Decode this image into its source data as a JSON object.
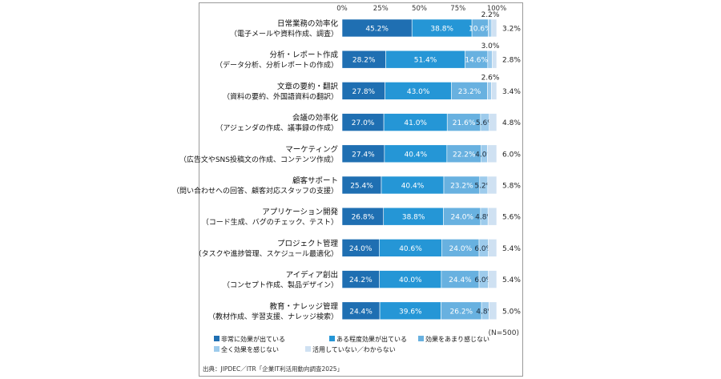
{
  "chart_data": {
    "type": "bar",
    "orientation": "horizontal",
    "stacked": true,
    "xlim": [
      0,
      100
    ],
    "ticks": [
      "0%",
      "25%",
      "50%",
      "75%",
      "100%"
    ],
    "grid": false,
    "legend_position": "bottom",
    "categories": [
      {
        "name": "日常業務の効率化",
        "sub": "（電子メールや資料作成、調査）"
      },
      {
        "name": "分析・レポート作成",
        "sub": "（データ分析、分析レポートの作成）"
      },
      {
        "name": "文章の要約・翻訳",
        "sub": "（資料の要約、外国語資料の翻訳）"
      },
      {
        "name": "会議の効率化",
        "sub": "（アジェンダの作成、議事録の作成）"
      },
      {
        "name": "マーケティング",
        "sub": "（広告文やSNS投稿文の作成、コンテンツ作成）"
      },
      {
        "name": "顧客サポート",
        "sub": "（問い合わせへの回答、顧客対応スタッフの支援）"
      },
      {
        "name": "アプリケーション開発",
        "sub": "（コード生成、バグのチェック、テスト）"
      },
      {
        "name": "プロジェクト管理",
        "sub": "（タスクや進捗管理、スケジュール最適化）"
      },
      {
        "name": "アイディア創出",
        "sub": "（コンセプト作成、製品デザイン）"
      },
      {
        "name": "教育・ナレッジ管理",
        "sub": "（教材作成、学習支援、ナレッジ検索）"
      }
    ],
    "series": [
      {
        "name": "非常に効果が出ている",
        "color": "#1f6fb2",
        "values": [
          45.2,
          28.2,
          27.8,
          27.0,
          27.4,
          25.4,
          26.8,
          24.0,
          24.2,
          24.4
        ],
        "labels": [
          "45.2%",
          "28.2%",
          "27.8%",
          "27.0%",
          "27.4%",
          "25.4%",
          "26.8%",
          "24.0%",
          "24.2%",
          "24.4%"
        ]
      },
      {
        "name": "ある程度効果が出ている",
        "color": "#2596d6",
        "values": [
          38.8,
          51.4,
          43.0,
          41.0,
          40.4,
          40.4,
          38.8,
          40.6,
          40.0,
          39.6
        ],
        "labels": [
          "38.8%",
          "51.4%",
          "43.0%",
          "41.0%",
          "40.4%",
          "40.4%",
          "38.8%",
          "40.6%",
          "40.0%",
          "39.6%"
        ]
      },
      {
        "name": "効果をあまり感じない",
        "color": "#68b1e0",
        "values": [
          10.6,
          14.6,
          23.2,
          21.6,
          22.2,
          23.2,
          24.0,
          24.0,
          24.4,
          26.2
        ],
        "labels": [
          "10.6%",
          "14.6%",
          "23.2%",
          "21.6%",
          "22.2%",
          "23.2%",
          "24.0%",
          "24.0%",
          "24.4%",
          "26.2%"
        ]
      },
      {
        "name": "全く効果を感じない",
        "color": "#9dcbec",
        "values": [
          2.2,
          3.0,
          2.6,
          5.6,
          4.0,
          5.2,
          4.8,
          6.0,
          6.0,
          4.8
        ],
        "labels": [
          "2.2%",
          "3.0%",
          "2.6%",
          "5.6%",
          "4.0%",
          "5.2%",
          "4.8%",
          "6.0%",
          "6.0%",
          "4.8%"
        ]
      },
      {
        "name": "活用していない／わからない",
        "color": "#cfe1f2",
        "values": [
          3.2,
          2.8,
          3.4,
          4.8,
          6.0,
          5.8,
          5.6,
          5.4,
          5.4,
          5.0
        ],
        "labels": [
          "3.2%",
          "2.8%",
          "3.4%",
          "4.8%",
          "6.0%",
          "5.8%",
          "5.6%",
          "5.4%",
          "5.4%",
          "5.0%"
        ]
      }
    ],
    "note": "(N=500)",
    "source": "出典：JIPDEC／ITR「企業IT利活用動向調査2025」"
  }
}
